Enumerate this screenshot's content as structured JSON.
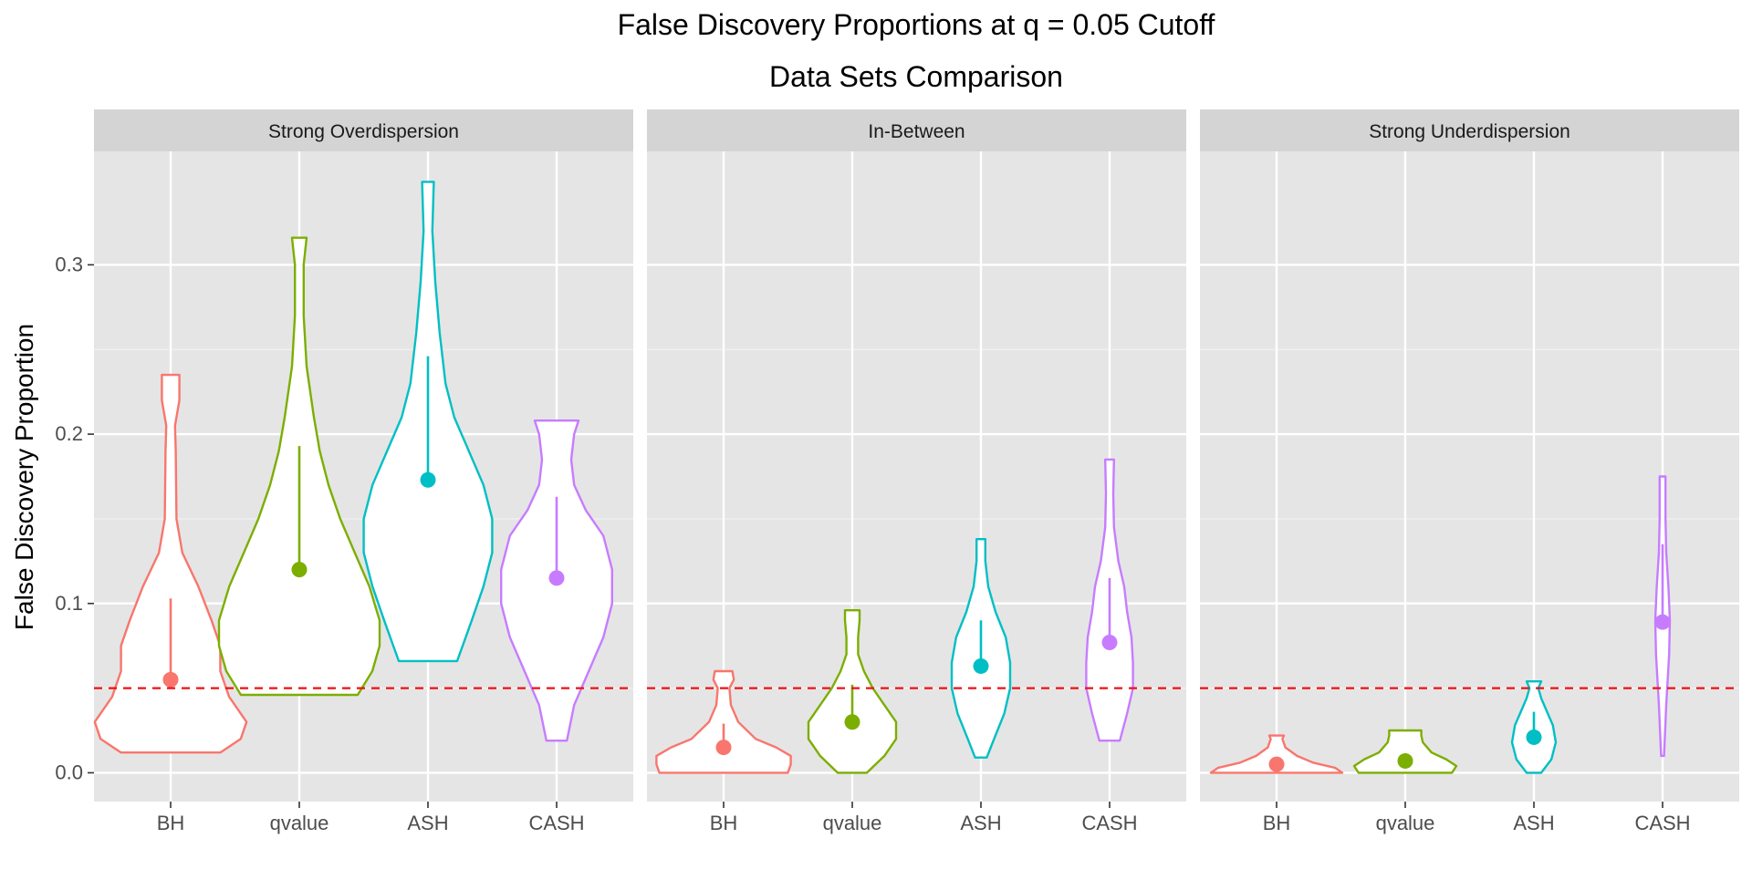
{
  "chart_data": {
    "type": "violin",
    "title": "False Discovery Proportions at q = 0.05 Cutoff",
    "subtitle": "Data Sets Comparison",
    "xlabel": "",
    "ylabel": "False Discovery Proportion",
    "ylim": [
      -0.017,
      0.367
    ],
    "yticks": [
      0.0,
      0.1,
      0.2,
      0.3
    ],
    "ytick_labels": [
      "0.0",
      "0.1",
      "0.2",
      "0.3"
    ],
    "categories": [
      "BH",
      "qvalue",
      "ASH",
      "CASH"
    ],
    "reference_line": {
      "y": 0.05,
      "style": "dashed",
      "color": "#ee1111"
    },
    "colors": {
      "BH": "#f8766d",
      "qvalue": "#7cae00",
      "ASH": "#00bfc4",
      "CASH": "#c77cff"
    },
    "panel_background": "#e5e5e5",
    "strip_background": "#d4d4d4",
    "grid": true,
    "legend": "none",
    "facets": [
      {
        "name": "Strong Overdispersion",
        "violins": [
          {
            "method": "BH",
            "mean": 0.055,
            "sd_high": 0.103,
            "profile": [
              [
                0.012,
                0.34
              ],
              [
                0.02,
                0.48
              ],
              [
                0.03,
                0.52
              ],
              [
                0.045,
                0.4
              ],
              [
                0.06,
                0.34
              ],
              [
                0.075,
                0.34
              ],
              [
                0.09,
                0.28
              ],
              [
                0.11,
                0.19
              ],
              [
                0.13,
                0.08
              ],
              [
                0.15,
                0.04
              ],
              [
                0.19,
                0.035
              ],
              [
                0.205,
                0.03
              ],
              [
                0.22,
                0.06
              ],
              [
                0.235,
                0.06
              ]
            ]
          },
          {
            "method": "qvalue",
            "mean": 0.12,
            "sd_high": 0.193,
            "profile": [
              [
                0.046,
                0.4
              ],
              [
                0.06,
                0.5
              ],
              [
                0.075,
                0.55
              ],
              [
                0.09,
                0.55
              ],
              [
                0.11,
                0.48
              ],
              [
                0.13,
                0.38
              ],
              [
                0.15,
                0.28
              ],
              [
                0.17,
                0.2
              ],
              [
                0.19,
                0.14
              ],
              [
                0.21,
                0.1
              ],
              [
                0.24,
                0.05
              ],
              [
                0.27,
                0.03
              ],
              [
                0.3,
                0.03
              ],
              [
                0.316,
                0.05
              ]
            ]
          },
          {
            "method": "ASH",
            "mean": 0.173,
            "sd_high": 0.246,
            "profile": [
              [
                0.066,
                0.2
              ],
              [
                0.09,
                0.3
              ],
              [
                0.11,
                0.38
              ],
              [
                0.13,
                0.44
              ],
              [
                0.15,
                0.44
              ],
              [
                0.17,
                0.38
              ],
              [
                0.19,
                0.28
              ],
              [
                0.21,
                0.18
              ],
              [
                0.23,
                0.12
              ],
              [
                0.26,
                0.08
              ],
              [
                0.29,
                0.05
              ],
              [
                0.32,
                0.03
              ],
              [
                0.349,
                0.04
              ]
            ]
          },
          {
            "method": "CASH",
            "mean": 0.115,
            "sd_high": 0.163,
            "profile": [
              [
                0.019,
                0.07
              ],
              [
                0.04,
                0.12
              ],
              [
                0.06,
                0.22
              ],
              [
                0.08,
                0.32
              ],
              [
                0.1,
                0.38
              ],
              [
                0.12,
                0.38
              ],
              [
                0.14,
                0.32
              ],
              [
                0.155,
                0.2
              ],
              [
                0.17,
                0.12
              ],
              [
                0.185,
                0.1
              ],
              [
                0.2,
                0.12
              ],
              [
                0.208,
                0.15
              ]
            ]
          }
        ]
      },
      {
        "name": "In-Between",
        "violins": [
          {
            "method": "BH",
            "mean": 0.015,
            "sd_high": 0.029,
            "profile": [
              [
                0.0,
                0.44
              ],
              [
                0.005,
                0.46
              ],
              [
                0.01,
                0.46
              ],
              [
                0.015,
                0.36
              ],
              [
                0.02,
                0.22
              ],
              [
                0.03,
                0.1
              ],
              [
                0.04,
                0.05
              ],
              [
                0.05,
                0.04
              ],
              [
                0.055,
                0.07
              ],
              [
                0.06,
                0.06
              ]
            ]
          },
          {
            "method": "qvalue",
            "mean": 0.03,
            "sd_high": 0.052,
            "profile": [
              [
                0.0,
                0.1
              ],
              [
                0.01,
                0.22
              ],
              [
                0.02,
                0.3
              ],
              [
                0.03,
                0.3
              ],
              [
                0.04,
                0.22
              ],
              [
                0.05,
                0.14
              ],
              [
                0.06,
                0.08
              ],
              [
                0.07,
                0.04
              ],
              [
                0.08,
                0.04
              ],
              [
                0.09,
                0.05
              ],
              [
                0.096,
                0.05
              ]
            ]
          },
          {
            "method": "ASH",
            "mean": 0.063,
            "sd_high": 0.09,
            "profile": [
              [
                0.009,
                0.04
              ],
              [
                0.02,
                0.09
              ],
              [
                0.035,
                0.16
              ],
              [
                0.05,
                0.2
              ],
              [
                0.065,
                0.2
              ],
              [
                0.08,
                0.17
              ],
              [
                0.095,
                0.1
              ],
              [
                0.11,
                0.05
              ],
              [
                0.125,
                0.03
              ],
              [
                0.138,
                0.03
              ]
            ]
          },
          {
            "method": "CASH",
            "mean": 0.077,
            "sd_high": 0.115,
            "profile": [
              [
                0.019,
                0.07
              ],
              [
                0.035,
                0.12
              ],
              [
                0.05,
                0.16
              ],
              [
                0.065,
                0.16
              ],
              [
                0.08,
                0.15
              ],
              [
                0.095,
                0.12
              ],
              [
                0.11,
                0.1
              ],
              [
                0.125,
                0.06
              ],
              [
                0.145,
                0.03
              ],
              [
                0.165,
                0.025
              ],
              [
                0.185,
                0.03
              ]
            ]
          }
        ]
      },
      {
        "name": "Strong Underdispersion",
        "violins": [
          {
            "method": "BH",
            "mean": 0.005,
            "sd_high": 0.009,
            "profile": [
              [
                0.0,
                0.45
              ],
              [
                0.003,
                0.4
              ],
              [
                0.006,
                0.25
              ],
              [
                0.01,
                0.14
              ],
              [
                0.015,
                0.06
              ],
              [
                0.02,
                0.04
              ],
              [
                0.022,
                0.05
              ]
            ]
          },
          {
            "method": "qvalue",
            "mean": 0.007,
            "sd_high": 0.011,
            "profile": [
              [
                0.0,
                0.32
              ],
              [
                0.004,
                0.35
              ],
              [
                0.008,
                0.28
              ],
              [
                0.012,
                0.18
              ],
              [
                0.018,
                0.12
              ],
              [
                0.022,
                0.11
              ],
              [
                0.025,
                0.11
              ]
            ]
          },
          {
            "method": "ASH",
            "mean": 0.021,
            "sd_high": 0.036,
            "profile": [
              [
                0.0,
                0.05
              ],
              [
                0.008,
                0.12
              ],
              [
                0.018,
                0.15
              ],
              [
                0.028,
                0.13
              ],
              [
                0.036,
                0.09
              ],
              [
                0.044,
                0.05
              ],
              [
                0.05,
                0.03
              ],
              [
                0.054,
                0.05
              ]
            ]
          },
          {
            "method": "CASH",
            "mean": 0.089,
            "sd_high": 0.135,
            "profile": [
              [
                0.01,
                0.01
              ],
              [
                0.04,
                0.025
              ],
              [
                0.07,
                0.045
              ],
              [
                0.09,
                0.05
              ],
              [
                0.11,
                0.04
              ],
              [
                0.13,
                0.025
              ],
              [
                0.15,
                0.02
              ],
              [
                0.175,
                0.02
              ]
            ]
          }
        ]
      }
    ]
  }
}
